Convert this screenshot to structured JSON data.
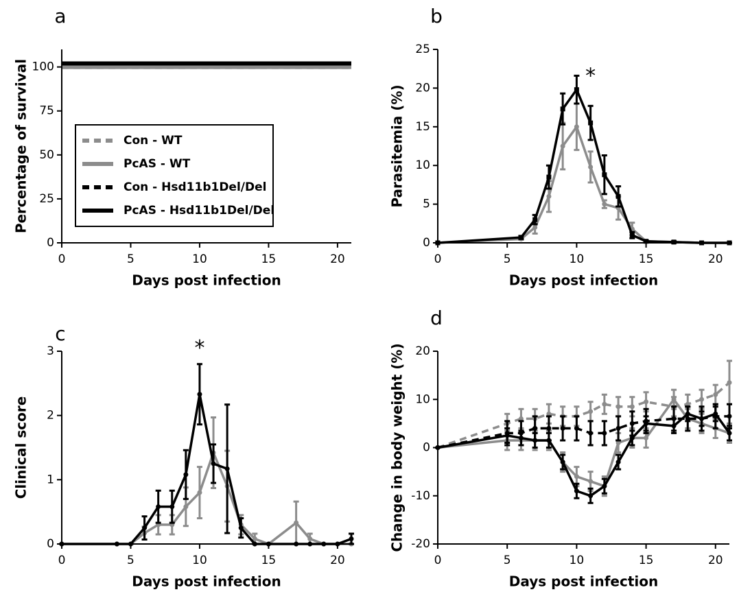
{
  "chart_data": [
    {
      "type": "line",
      "title": "a",
      "xlabel": "Days post infection",
      "ylabel": "Percentage of survival",
      "x": [
        0,
        21
      ],
      "xlim": [
        0,
        21
      ],
      "xticks": [
        0,
        5,
        10,
        15,
        20
      ],
      "ylim": [
        0,
        110
      ],
      "yticks": [
        0,
        25,
        50,
        75,
        100
      ],
      "legend": "lower left",
      "series": [
        {
          "name": "Con - WT",
          "color": "#8c8c8c",
          "linestyle": "dashed",
          "values": [
            100,
            100
          ]
        },
        {
          "name": "PcAS - WT",
          "color": "#8c8c8c",
          "linestyle": "solid",
          "values": [
            100,
            100
          ]
        },
        {
          "name": "Con - Hsd11b1Del/Del",
          "color": "#000000",
          "linestyle": "dashed",
          "values": [
            102,
            102
          ]
        },
        {
          "name": "PcAS - Hsd11b1Del/Del",
          "color": "#000000",
          "linestyle": "solid",
          "values": [
            102,
            102
          ]
        }
      ]
    },
    {
      "type": "line",
      "title": "b",
      "xlabel": "Days post infection",
      "ylabel": "Parasitemia (%)",
      "x": [
        0,
        6,
        7,
        8,
        9,
        10,
        11,
        12,
        13,
        14,
        15,
        17,
        19,
        21
      ],
      "xlim": [
        0,
        21
      ],
      "xticks": [
        0,
        5,
        10,
        15,
        20
      ],
      "ylim": [
        0,
        25
      ],
      "yticks": [
        0,
        5,
        10,
        15,
        20,
        25
      ],
      "annotations": [
        {
          "text": "*",
          "x": 11,
          "y": 22
        }
      ],
      "series": [
        {
          "name": "PcAS - WT",
          "color": "#8c8c8c",
          "linestyle": "solid",
          "marker": "circle",
          "values": [
            0,
            0.5,
            2,
            6,
            12.5,
            15,
            9.8,
            5,
            4.5,
            1.8,
            0.2,
            0.1,
            0,
            0
          ],
          "errors": [
            0,
            0.1,
            0.8,
            2,
            3,
            3,
            2,
            0.5,
            1.5,
            0.8,
            0.1,
            0.1,
            0,
            0
          ]
        },
        {
          "name": "PcAS - Hsd11b1Del/Del",
          "color": "#000000",
          "linestyle": "solid",
          "marker": "square",
          "values": [
            0,
            0.7,
            3,
            8.5,
            17.3,
            19.8,
            15.5,
            8.8,
            6,
            1,
            0.2,
            0.1,
            0,
            0
          ],
          "errors": [
            0,
            0.2,
            0.6,
            1.5,
            2,
            1.8,
            2.2,
            2.5,
            1.3,
            0.4,
            0.1,
            0.1,
            0,
            0
          ]
        }
      ]
    },
    {
      "type": "line",
      "title": "c",
      "xlabel": "Days post infection",
      "ylabel": "Clinical score",
      "x": [
        0,
        4,
        5,
        6,
        7,
        8,
        9,
        10,
        11,
        12,
        13,
        14,
        15,
        17,
        18,
        19,
        20,
        21
      ],
      "xlim": [
        0,
        21
      ],
      "xticks": [
        0,
        5,
        10,
        15,
        20
      ],
      "ylim": [
        0,
        3
      ],
      "yticks": [
        0,
        1,
        2,
        3
      ],
      "annotations": [
        {
          "text": "*",
          "x": 10,
          "y": 3.1
        }
      ],
      "series": [
        {
          "name": "PcAS - WT",
          "color": "#8c8c8c",
          "linestyle": "solid",
          "marker": "circle",
          "values": [
            0,
            0,
            0,
            0.17,
            0.3,
            0.3,
            0.58,
            0.8,
            1.42,
            0.9,
            0.3,
            0.08,
            0,
            0.33,
            0.08,
            0,
            0,
            0
          ],
          "errors": [
            0,
            0,
            0,
            0.1,
            0.15,
            0.15,
            0.3,
            0.4,
            0.55,
            0.55,
            0.15,
            0.08,
            0,
            0.33,
            0.08,
            0,
            0,
            0
          ]
        },
        {
          "name": "PcAS - Hsd11b1Del/Del",
          "color": "#000000",
          "linestyle": "solid",
          "marker": "circle",
          "values": [
            0,
            0,
            0,
            0.25,
            0.58,
            0.58,
            1.08,
            2.33,
            1.25,
            1.17,
            0.25,
            0,
            0,
            0,
            0,
            0,
            0,
            0.08
          ],
          "errors": [
            0,
            0,
            0,
            0.18,
            0.25,
            0.25,
            0.38,
            0.47,
            0.3,
            1,
            0.15,
            0,
            0,
            0,
            0,
            0,
            0,
            0.08
          ]
        }
      ]
    },
    {
      "type": "line",
      "title": "d",
      "xlabel": "Days post infection",
      "ylabel": "Change in body weight (%)",
      "x": [
        0,
        5,
        6,
        7,
        8,
        9,
        10,
        11,
        12,
        13,
        14,
        15,
        17,
        18,
        19,
        20,
        21
      ],
      "xlim": [
        0,
        21
      ],
      "xticks": [
        0,
        5,
        10,
        15,
        20
      ],
      "ylim": [
        -20,
        20
      ],
      "yticks": [
        -20,
        -10,
        0,
        10,
        20
      ],
      "series": [
        {
          "name": "Con - WT",
          "color": "#8c8c8c",
          "linestyle": "dashed",
          "marker": "circle",
          "values": [
            0,
            5,
            6,
            6,
            7,
            6.5,
            6.5,
            7.5,
            9,
            8.5,
            8.5,
            9.5,
            8.5,
            9,
            10,
            11,
            13.5
          ],
          "errors": [
            0,
            2,
            2,
            2,
            2,
            2,
            2,
            2,
            2,
            2,
            2,
            2,
            2,
            2,
            2,
            2,
            4.5
          ]
        },
        {
          "name": "PcAS - WT",
          "color": "#8c8c8c",
          "linestyle": "solid",
          "marker": "circle",
          "values": [
            0,
            1.5,
            1.5,
            1.5,
            1.5,
            -3,
            -6,
            -7,
            -8,
            1,
            2,
            2,
            10,
            6,
            5,
            4,
            3
          ],
          "errors": [
            0,
            2,
            2,
            2,
            2,
            2,
            2,
            2,
            2,
            2,
            2,
            2,
            2,
            2,
            2,
            2,
            2
          ]
        },
        {
          "name": "Con - Hsd11b1Del/Del",
          "color": "#000000",
          "linestyle": "dashed",
          "marker": "circle",
          "values": [
            0,
            3,
            3,
            4,
            4,
            4,
            4,
            3,
            3,
            4,
            5,
            5.5,
            6,
            6,
            6,
            6.5,
            6.5
          ],
          "errors": [
            0,
            2.5,
            2.5,
            2.5,
            2.5,
            2.5,
            2.5,
            2.5,
            2.5,
            2.5,
            2.5,
            2.5,
            2.5,
            2.5,
            2.5,
            2.5,
            2.5
          ]
        },
        {
          "name": "PcAS - Hsd11b1Del/Del",
          "color": "#000000",
          "linestyle": "solid",
          "marker": "circle",
          "values": [
            0,
            2.5,
            2,
            1.5,
            1.5,
            -3,
            -9,
            -10,
            -8,
            -3,
            2,
            5,
            4.5,
            7,
            6,
            7,
            3
          ],
          "errors": [
            0,
            1.5,
            1.5,
            1.5,
            1.5,
            1.5,
            1.5,
            1.5,
            1.5,
            1.5,
            1.5,
            1.5,
            1.5,
            1.5,
            1.5,
            1.5,
            1.5
          ]
        }
      ]
    }
  ]
}
